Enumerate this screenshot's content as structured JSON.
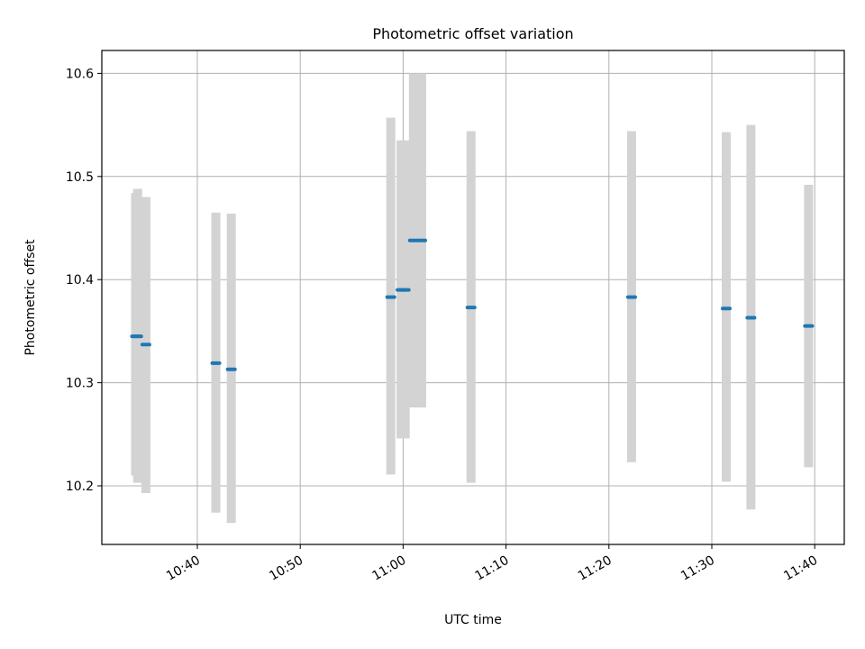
{
  "chart_data": {
    "type": "scatter",
    "title": "Photometric offset variation",
    "xlabel": "UTC time",
    "ylabel": "Photometric offset",
    "grid": true,
    "x_ticks": [
      "10:40",
      "10:50",
      "11:00",
      "11:10",
      "11:20",
      "11:30",
      "11:40"
    ],
    "y_ticks": [
      "10.2",
      "10.3",
      "10.4",
      "10.5",
      "10.6"
    ],
    "colors": {
      "point": "#1f77b4",
      "errorbar": "#d3d3d3"
    },
    "points": [
      {
        "x": "10:34",
        "y": 10.345,
        "ylo": 10.21,
        "yhi": 10.484
      },
      {
        "x": "10:34.2",
        "y": 10.345,
        "ylo": 10.203,
        "yhi": 10.488
      },
      {
        "x": "10:35",
        "y": 10.337,
        "ylo": 10.193,
        "yhi": 10.48
      },
      {
        "x": "10:41.8",
        "y": 10.319,
        "ylo": 10.174,
        "yhi": 10.465
      },
      {
        "x": "10:43.3",
        "y": 10.313,
        "ylo": 10.164,
        "yhi": 10.464
      },
      {
        "x": "10:58.8",
        "y": 10.383,
        "ylo": 10.211,
        "yhi": 10.557
      },
      {
        "x": "10:59.8",
        "y": 10.39,
        "ylo": 10.246,
        "yhi": 10.535
      },
      {
        "x": "11:00.2",
        "y": 10.39,
        "ylo": 10.246,
        "yhi": 10.535
      },
      {
        "x": "11:01",
        "y": 10.438,
        "ylo": 10.276,
        "yhi": 10.6
      },
      {
        "x": "11:01.8",
        "y": 10.438,
        "ylo": 10.276,
        "yhi": 10.6
      },
      {
        "x": "11:06.6",
        "y": 10.373,
        "ylo": 10.203,
        "yhi": 10.544
      },
      {
        "x": "11:22.2",
        "y": 10.383,
        "ylo": 10.223,
        "yhi": 10.544
      },
      {
        "x": "11:31.4",
        "y": 10.372,
        "ylo": 10.204,
        "yhi": 10.543
      },
      {
        "x": "11:33.8",
        "y": 10.363,
        "ylo": 10.177,
        "yhi": 10.55
      },
      {
        "x": "11:39.4",
        "y": 10.355,
        "ylo": 10.218,
        "yhi": 10.492
      }
    ]
  }
}
